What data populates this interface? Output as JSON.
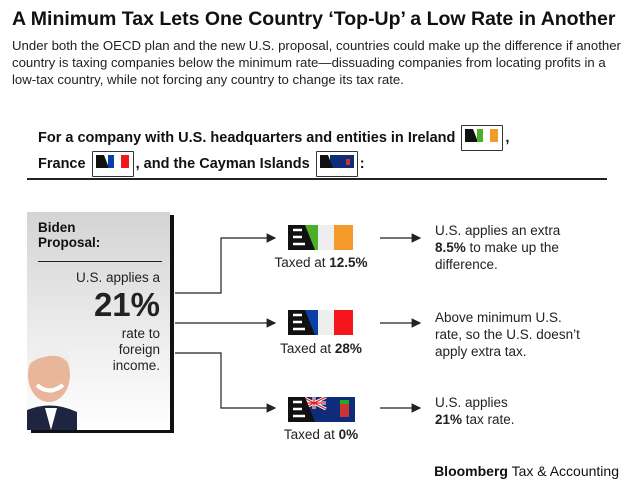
{
  "title": "A Minimum Tax Lets One Country ‘Top-Up’ a Low Rate in Another",
  "intro": "Under both the OECD plan and the new U.S. proposal, countries could make up the difference if another country is taxing companies below the minimum rate—dissuading companies from locating profits in a low-tax country, while not forcing any country to change its tax rate.",
  "subheading": {
    "p1": "For a company with U.S. headquarters and entities in Ireland",
    "p2": "France",
    "p3": ", and the Cayman Islands"
  },
  "card": {
    "heading": "Biden Proposal:",
    "line1": "U.S. applies a",
    "rate": "21%",
    "line2": "rate to foreign income."
  },
  "countries": [
    {
      "name": "Ireland",
      "caption": "Taxed at ",
      "rate": "12.5%",
      "outcome_pre": "U.S. applies an extra ",
      "outcome_bold": "8.5%",
      "outcome_post": " to make up the difference."
    },
    {
      "name": "France",
      "caption": "Taxed at ",
      "rate": "28%",
      "outcome_pre": "Above minimum U.S. rate, so the U.S. doesn’t apply extra tax.",
      "outcome_bold": "",
      "outcome_post": ""
    },
    {
      "name": "Cayman Islands",
      "caption": "Taxed at ",
      "rate": "0%",
      "outcome_pre": "U.S. applies ",
      "outcome_bold": "21%",
      "outcome_post": " tax rate."
    }
  ],
  "logo": {
    "bold": "Bloomberg",
    "rest": " Tax & Accounting"
  },
  "colors": {
    "ireland_green": "#4caf2a",
    "ireland_orange": "#f39a2b",
    "france_blue": "#0a3ea8",
    "france_red": "#f4161b",
    "cayman_blue": "#0f2c7a"
  }
}
